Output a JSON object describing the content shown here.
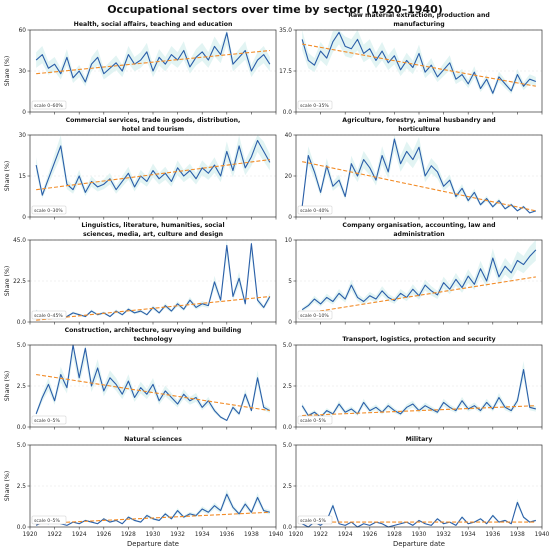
{
  "title": "Occupational sectors over time by sector (1920–1940)",
  "colors": {
    "line": "#2a5ea8",
    "trend": "#f28c28",
    "band": "#d6f0ee"
  },
  "x_axis": {
    "label": "Departure date",
    "range": [
      1920,
      1940
    ],
    "ticks": [
      "1920",
      "1922",
      "1924",
      "1926",
      "1928",
      "1930",
      "1932",
      "1934",
      "1936",
      "1938",
      "1940"
    ]
  },
  "y_label": "Share (%)",
  "chart_data": [
    {
      "type": "line",
      "title": "Health, social affairs, teaching and education",
      "ylim": [
        0,
        60
      ],
      "yticks": [
        "0",
        "30",
        "60"
      ],
      "scale_note": "scale 0–60%",
      "trend": [
        28,
        45
      ],
      "x": [
        1920.5,
        1921,
        1921.5,
        1922,
        1922.5,
        1923,
        1923.5,
        1924,
        1924.5,
        1925,
        1925.5,
        1926,
        1926.5,
        1927,
        1927.5,
        1928,
        1928.5,
        1929,
        1929.5,
        1930,
        1930.5,
        1931,
        1931.5,
        1932,
        1932.5,
        1933,
        1933.5,
        1934,
        1934.5,
        1935,
        1935.5,
        1936,
        1936.5,
        1937,
        1937.5,
        1938,
        1938.5,
        1939,
        1939.5
      ],
      "y": [
        38,
        42,
        32,
        35,
        28,
        40,
        25,
        30,
        22,
        35,
        40,
        28,
        32,
        36,
        30,
        42,
        35,
        38,
        44,
        30,
        40,
        35,
        42,
        38,
        45,
        33,
        40,
        44,
        38,
        48,
        42,
        58,
        35,
        40,
        45,
        30,
        38,
        42,
        35
      ]
    },
    {
      "type": "line",
      "title": "Raw material extraction, production and manufacturing",
      "ylim": [
        0,
        35
      ],
      "yticks": [
        "0.0",
        "17.5",
        "35.0"
      ],
      "scale_note": "scale 0–35%",
      "trend": [
        29,
        11
      ],
      "x": [
        1920.5,
        1921,
        1921.5,
        1922,
        1922.5,
        1923,
        1923.5,
        1924,
        1924.5,
        1925,
        1925.5,
        1926,
        1926.5,
        1927,
        1927.5,
        1928,
        1928.5,
        1929,
        1929.5,
        1930,
        1930.5,
        1931,
        1931.5,
        1932,
        1932.5,
        1933,
        1933.5,
        1934,
        1934.5,
        1935,
        1935.5,
        1936,
        1936.5,
        1937,
        1937.5,
        1938,
        1938.5,
        1939,
        1939.5
      ],
      "y": [
        31,
        22,
        20,
        26,
        23,
        30,
        34,
        28,
        27,
        31,
        25,
        27,
        22,
        26,
        21,
        24,
        18,
        22,
        19,
        25,
        17,
        20,
        15,
        18,
        21,
        14,
        16,
        12,
        17,
        10,
        14,
        8,
        15,
        12,
        9,
        16,
        11,
        14,
        13
      ]
    },
    {
      "type": "line",
      "title": "Commercial services, trade in goods, distribution, hotel and tourism",
      "ylim": [
        0,
        30
      ],
      "yticks": [
        "0",
        "15",
        "30"
      ],
      "scale_note": "scale 0–30%",
      "trend": [
        10,
        21
      ],
      "x": [
        1920.5,
        1921,
        1921.5,
        1922,
        1922.5,
        1923,
        1923.5,
        1924,
        1924.5,
        1925,
        1925.5,
        1926,
        1926.5,
        1927,
        1927.5,
        1928,
        1928.5,
        1929,
        1929.5,
        1930,
        1930.5,
        1931,
        1931.5,
        1932,
        1932.5,
        1933,
        1933.5,
        1934,
        1934.5,
        1935,
        1935.5,
        1936,
        1936.5,
        1937,
        1937.5,
        1938,
        1938.5,
        1939,
        1939.5
      ],
      "y": [
        19,
        8,
        14,
        20,
        26,
        12,
        10,
        15,
        9,
        13,
        11,
        12,
        14,
        10,
        13,
        16,
        11,
        15,
        13,
        17,
        14,
        16,
        13,
        18,
        15,
        17,
        14,
        18,
        16,
        19,
        15,
        24,
        17,
        26,
        18,
        22,
        28,
        24,
        20
      ]
    },
    {
      "type": "line",
      "title": "Agriculture, forestry, animal husbandry and horticulture",
      "ylim": [
        0,
        40
      ],
      "yticks": [
        "0",
        "20",
        "40"
      ],
      "scale_note": "scale 0–40%",
      "trend": [
        27,
        3
      ],
      "x": [
        1920.5,
        1921,
        1921.5,
        1922,
        1922.5,
        1923,
        1923.5,
        1924,
        1924.5,
        1925,
        1925.5,
        1926,
        1926.5,
        1927,
        1927.5,
        1928,
        1928.5,
        1929,
        1929.5,
        1930,
        1930.5,
        1931,
        1931.5,
        1932,
        1932.5,
        1933,
        1933.5,
        1934,
        1934.5,
        1935,
        1935.5,
        1936,
        1936.5,
        1937,
        1937.5,
        1938,
        1938.5,
        1939,
        1939.5
      ],
      "y": [
        5,
        30,
        22,
        12,
        25,
        15,
        18,
        10,
        26,
        20,
        28,
        24,
        18,
        30,
        22,
        38,
        26,
        32,
        28,
        34,
        20,
        25,
        22,
        15,
        18,
        10,
        14,
        8,
        12,
        6,
        9,
        5,
        8,
        4,
        6,
        3,
        5,
        2,
        3
      ]
    },
    {
      "type": "line",
      "title": "Linguistics, literature, humanities, social sciences, media, art, culture and design",
      "ylim": [
        0,
        45
      ],
      "yticks": [
        "0.0",
        "22.5",
        "45.0"
      ],
      "scale_note": "scale 0–45%",
      "trend": [
        1,
        14
      ],
      "x": [
        1920.5,
        1921,
        1921.5,
        1922,
        1922.5,
        1923,
        1923.5,
        1924,
        1924.5,
        1925,
        1925.5,
        1926,
        1926.5,
        1927,
        1927.5,
        1928,
        1928.5,
        1929,
        1929.5,
        1930,
        1930.5,
        1931,
        1931.5,
        1932,
        1932.5,
        1933,
        1933.5,
        1934,
        1934.5,
        1935,
        1935.5,
        1936,
        1936.5,
        1937,
        1937.5,
        1938,
        1938.5,
        1939,
        1939.5
      ],
      "y": [
        6,
        3,
        5,
        4,
        2,
        3,
        5,
        4,
        3,
        6,
        4,
        5,
        3,
        6,
        4,
        7,
        5,
        6,
        4,
        8,
        5,
        9,
        6,
        10,
        7,
        12,
        8,
        10,
        9,
        22,
        12,
        42,
        14,
        24,
        10,
        43,
        12,
        8,
        14
      ]
    },
    {
      "type": "line",
      "title": "Company organisation, accounting, law and administration",
      "ylim": [
        0,
        10
      ],
      "yticks": [
        "0",
        "5",
        "10"
      ],
      "scale_note": "scale 0–10%",
      "trend": [
        1,
        5.5
      ],
      "x": [
        1920.5,
        1921,
        1921.5,
        1922,
        1922.5,
        1923,
        1923.5,
        1924,
        1924.5,
        1925,
        1925.5,
        1926,
        1926.5,
        1927,
        1927.5,
        1928,
        1928.5,
        1929,
        1929.5,
        1930,
        1930.5,
        1931,
        1931.5,
        1932,
        1932.5,
        1933,
        1933.5,
        1934,
        1934.5,
        1935,
        1935.5,
        1936,
        1936.5,
        1937,
        1937.5,
        1938,
        1938.5,
        1939,
        1939.5
      ],
      "y": [
        1.5,
        2,
        2.8,
        2.2,
        3,
        2.5,
        3.5,
        2.8,
        4.5,
        3,
        2.5,
        3.2,
        2.8,
        3.8,
        3,
        2.6,
        3.5,
        3,
        4,
        3.2,
        4.5,
        3.8,
        3.3,
        4.8,
        4,
        5.2,
        4.2,
        5.6,
        4.6,
        6.5,
        5,
        7.8,
        5.5,
        6.8,
        6,
        7.5,
        7,
        8,
        8.8
      ]
    },
    {
      "type": "line",
      "title": "Construction, architecture, surveying and building technology",
      "ylim": [
        0,
        5
      ],
      "yticks": [
        "0.0",
        "2.5",
        "5.0"
      ],
      "scale_note": "scale 0–5%",
      "trend": [
        3.2,
        1.0
      ],
      "x": [
        1920.5,
        1921,
        1921.5,
        1922,
        1922.5,
        1923,
        1923.5,
        1924,
        1924.5,
        1925,
        1925.5,
        1926,
        1926.5,
        1927,
        1927.5,
        1928,
        1928.5,
        1929,
        1929.5,
        1930,
        1930.5,
        1931,
        1931.5,
        1932,
        1932.5,
        1933,
        1933.5,
        1934,
        1934.5,
        1935,
        1935.5,
        1936,
        1936.5,
        1937,
        1937.5,
        1938,
        1938.5,
        1939,
        1939.5
      ],
      "y": [
        0.8,
        1.8,
        2.6,
        1.6,
        3.2,
        2.4,
        5.0,
        3.0,
        4.8,
        2.5,
        3.6,
        2.2,
        3.0,
        2.6,
        2.0,
        2.8,
        1.8,
        2.4,
        2.0,
        2.6,
        1.6,
        2.2,
        1.8,
        1.4,
        2.0,
        1.6,
        1.8,
        1.2,
        1.6,
        1.0,
        0.6,
        0.4,
        1.2,
        0.8,
        2.0,
        1.0,
        3.0,
        1.2,
        1.0
      ]
    },
    {
      "type": "line",
      "title": "Transport, logistics, protection and security",
      "ylim": [
        0,
        5
      ],
      "yticks": [
        "0.0",
        "2.5",
        "5.0"
      ],
      "scale_note": "scale 0–5%",
      "trend": [
        0.7,
        1.3
      ],
      "x": [
        1920.5,
        1921,
        1921.5,
        1922,
        1922.5,
        1923,
        1923.5,
        1924,
        1924.5,
        1925,
        1925.5,
        1926,
        1926.5,
        1927,
        1927.5,
        1928,
        1928.5,
        1929,
        1929.5,
        1930,
        1930.5,
        1931,
        1931.5,
        1932,
        1932.5,
        1933,
        1933.5,
        1934,
        1934.5,
        1935,
        1935.5,
        1936,
        1936.5,
        1937,
        1937.5,
        1938,
        1938.5,
        1939,
        1939.5
      ],
      "y": [
        1.3,
        0.7,
        0.9,
        0.6,
        1.0,
        0.8,
        1.4,
        0.9,
        1.1,
        0.8,
        1.5,
        1.0,
        1.2,
        0.9,
        1.3,
        1.0,
        0.8,
        1.2,
        1.4,
        1.0,
        1.3,
        1.1,
        0.9,
        1.5,
        1.2,
        1.0,
        1.6,
        1.1,
        1.3,
        1.0,
        1.5,
        1.1,
        1.8,
        1.2,
        1.0,
        1.6,
        3.5,
        1.2,
        1.1
      ]
    },
    {
      "type": "line",
      "title": "Natural sciences",
      "ylim": [
        0,
        5
      ],
      "yticks": [
        "0.0",
        "2.5",
        "5.0"
      ],
      "scale_note": "scale 0–5%",
      "trend": [
        0.2,
        0.9
      ],
      "x": [
        1920.5,
        1921,
        1921.5,
        1922,
        1922.5,
        1923,
        1923.5,
        1924,
        1924.5,
        1925,
        1925.5,
        1926,
        1926.5,
        1927,
        1927.5,
        1928,
        1928.5,
        1929,
        1929.5,
        1930,
        1930.5,
        1931,
        1931.5,
        1932,
        1932.5,
        1933,
        1933.5,
        1934,
        1934.5,
        1935,
        1935.5,
        1936,
        1936.5,
        1937,
        1937.5,
        1938,
        1938.5,
        1939,
        1939.5
      ],
      "y": [
        0.1,
        0.3,
        0.2,
        0.4,
        0.2,
        0.1,
        0.3,
        0.2,
        0.4,
        0.3,
        0.2,
        0.5,
        0.3,
        0.4,
        0.2,
        0.6,
        0.4,
        0.3,
        0.7,
        0.5,
        0.4,
        0.8,
        0.5,
        1.0,
        0.6,
        0.8,
        0.7,
        1.1,
        0.9,
        1.3,
        1.0,
        2.0,
        1.2,
        0.8,
        1.4,
        0.9,
        1.8,
        1.0,
        0.9
      ]
    },
    {
      "type": "line",
      "title": "Military",
      "ylim": [
        0,
        5
      ],
      "yticks": [
        "0.0",
        "2.5",
        "5.0"
      ],
      "scale_note": "scale 0–5%",
      "trend": [
        0.3,
        0.3
      ],
      "x": [
        1920.5,
        1921,
        1921.5,
        1922,
        1922.5,
        1923,
        1923.5,
        1924,
        1924.5,
        1925,
        1925.5,
        1926,
        1926.5,
        1927,
        1927.5,
        1928,
        1928.5,
        1929,
        1929.5,
        1930,
        1930.5,
        1931,
        1931.5,
        1932,
        1932.5,
        1933,
        1933.5,
        1934,
        1934.5,
        1935,
        1935.5,
        1936,
        1936.5,
        1937,
        1937.5,
        1938,
        1938.5,
        1939,
        1939.5
      ],
      "y": [
        0.2,
        0.0,
        0.3,
        0.1,
        0.4,
        1.3,
        0.2,
        0.1,
        0.3,
        0.0,
        0.2,
        0.1,
        0.3,
        0.2,
        0.0,
        0.1,
        0.2,
        0.3,
        0.1,
        0.4,
        0.2,
        0.1,
        0.5,
        0.2,
        0.3,
        0.1,
        0.6,
        0.2,
        0.3,
        0.5,
        0.2,
        0.7,
        0.3,
        0.4,
        0.2,
        1.5,
        0.6,
        0.3,
        0.4
      ]
    }
  ]
}
